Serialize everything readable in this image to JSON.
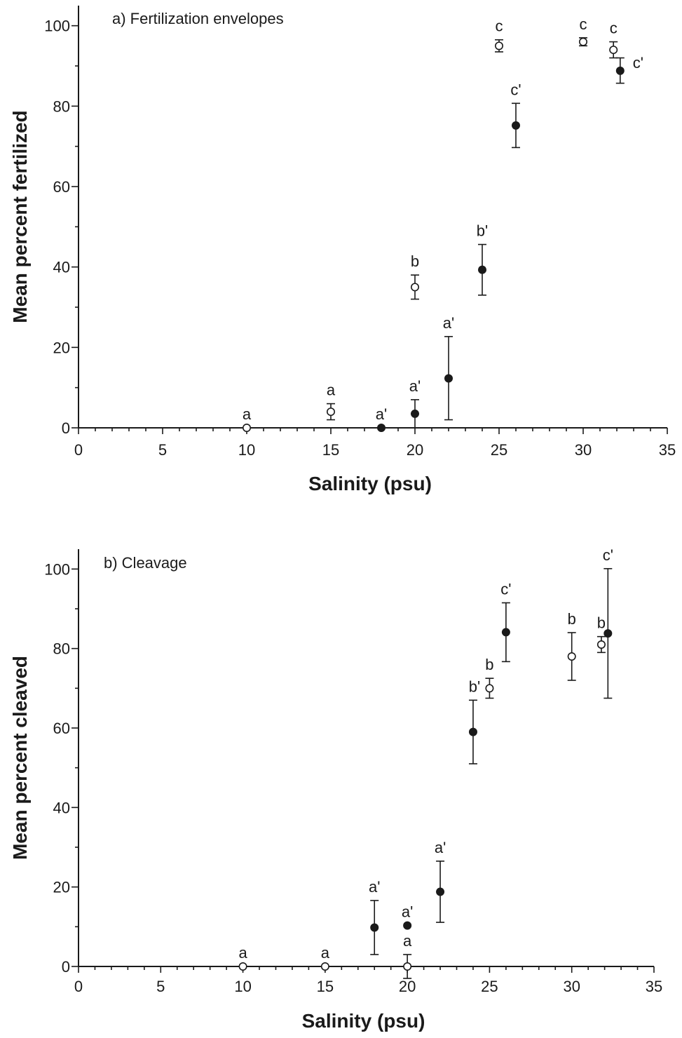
{
  "chart_data": [
    {
      "type": "scatter",
      "title": "a) Fertilization envelopes",
      "xlabel": "Salinity (psu)",
      "ylabel": "Mean percent fertilized",
      "xlim": [
        0,
        35
      ],
      "ylim": [
        0,
        105
      ],
      "xticks": [
        0,
        5,
        10,
        15,
        20,
        25,
        30,
        35
      ],
      "yticks": [
        0,
        20,
        40,
        60,
        80,
        100
      ],
      "series": [
        {
          "marker": "open-circle",
          "points": [
            {
              "x": 10,
              "y": 0,
              "err_low": 0,
              "err_high": 0,
              "label": "a"
            },
            {
              "x": 15,
              "y": 4,
              "err_low": 2,
              "err_high": 6,
              "label": "a"
            },
            {
              "x": 20,
              "y": 35,
              "err_low": 32,
              "err_high": 38,
              "label": "b"
            },
            {
              "x": 25,
              "y": 95,
              "err_low": 93.5,
              "err_high": 96.5,
              "label": "c"
            },
            {
              "x": 30,
              "y": 96,
              "err_low": 95,
              "err_high": 97,
              "label": "c"
            },
            {
              "x": 31.8,
              "y": 94,
              "err_low": 92,
              "err_high": 96,
              "label": "c"
            }
          ]
        },
        {
          "marker": "filled-circle",
          "points": [
            {
              "x": 18,
              "y": 0,
              "err_low": 0,
              "err_high": 0,
              "label": "a'"
            },
            {
              "x": 20,
              "y": 3.5,
              "err_low": 0,
              "err_high": 7,
              "label": "a'"
            },
            {
              "x": 22,
              "y": 12.3,
              "err_low": 2,
              "err_high": 22.7,
              "label": "a'"
            },
            {
              "x": 24,
              "y": 39.3,
              "err_low": 33,
              "err_high": 45.6,
              "label": "b'"
            },
            {
              "x": 26,
              "y": 75.2,
              "err_low": 69.7,
              "err_high": 80.7,
              "label": "c'"
            },
            {
              "x": 32.2,
              "y": 88.8,
              "err_low": 85.7,
              "err_high": 92,
              "label": "c'"
            }
          ]
        }
      ]
    },
    {
      "type": "scatter",
      "title": "b) Cleavage",
      "xlabel": "Salinity (psu)",
      "ylabel": "Mean percent cleaved",
      "xlim": [
        0,
        35
      ],
      "ylim": [
        0,
        105
      ],
      "xticks": [
        0,
        5,
        10,
        15,
        20,
        25,
        30,
        35
      ],
      "yticks": [
        0,
        20,
        40,
        60,
        80,
        100
      ],
      "series": [
        {
          "marker": "open-circle",
          "points": [
            {
              "x": 10,
              "y": 0,
              "err_low": 0,
              "err_high": 0,
              "label": "a"
            },
            {
              "x": 15,
              "y": 0,
              "err_low": 0,
              "err_high": 0,
              "label": "a"
            },
            {
              "x": 20,
              "y": 0,
              "err_low": -3,
              "err_high": 3,
              "label": "a"
            },
            {
              "x": 25,
              "y": 70,
              "err_low": 67.5,
              "err_high": 72.5,
              "label": "b"
            },
            {
              "x": 30,
              "y": 78,
              "err_low": 72,
              "err_high": 84,
              "label": "b"
            },
            {
              "x": 31.8,
              "y": 81,
              "err_low": 79,
              "err_high": 83,
              "label": "b"
            }
          ]
        },
        {
          "marker": "filled-circle",
          "points": [
            {
              "x": 18,
              "y": 9.8,
              "err_low": 3,
              "err_high": 16.6,
              "label": "a'"
            },
            {
              "x": 20,
              "y": 10.3,
              "err_low": 10.3,
              "err_high": 10.3,
              "label": "a'"
            },
            {
              "x": 22,
              "y": 18.8,
              "err_low": 11.1,
              "err_high": 26.5,
              "label": "a'"
            },
            {
              "x": 24,
              "y": 59,
              "err_low": 51,
              "err_high": 67,
              "label": "b'"
            },
            {
              "x": 26,
              "y": 84.1,
              "err_low": 76.7,
              "err_high": 91.5,
              "label": "c'"
            },
            {
              "x": 32.2,
              "y": 83.8,
              "err_low": 67.5,
              "err_high": 100.1,
              "label": "c'"
            }
          ]
        }
      ]
    }
  ]
}
